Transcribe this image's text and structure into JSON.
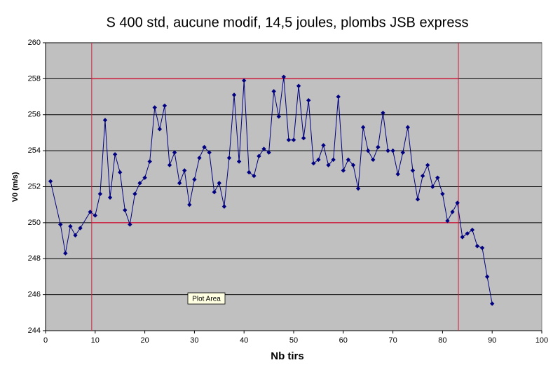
{
  "chart_data": {
    "type": "line",
    "title": "S 400 std, aucune modif,  14,5 joules,  plombs JSB express",
    "x_label": "Nb tirs",
    "y_label": "V0 (m/s)",
    "x": [
      1,
      3,
      4,
      5,
      6,
      7,
      9,
      10,
      11,
      12,
      13,
      14,
      15,
      16,
      17,
      18,
      19,
      20,
      21,
      22,
      23,
      24,
      25,
      26,
      27,
      28,
      29,
      30,
      31,
      32,
      33,
      34,
      35,
      36,
      37,
      38,
      39,
      40,
      41,
      42,
      43,
      44,
      45,
      46,
      47,
      48,
      49,
      50,
      51,
      52,
      53,
      54,
      55,
      56,
      57,
      58,
      59,
      60,
      61,
      62,
      63,
      64,
      65,
      66,
      67,
      68,
      69,
      70,
      71,
      72,
      73,
      74,
      75,
      76,
      77,
      78,
      79,
      80,
      81,
      82,
      83,
      84,
      85,
      86,
      87,
      88,
      89,
      90
    ],
    "values": [
      252.3,
      249.9,
      248.3,
      249.8,
      249.3,
      249.7,
      250.6,
      250.4,
      251.6,
      255.7,
      251.4,
      253.8,
      252.8,
      250.7,
      249.9,
      251.6,
      252.2,
      252.5,
      253.4,
      256.4,
      255.2,
      256.5,
      253.2,
      253.9,
      252.2,
      252.9,
      251.0,
      252.4,
      253.6,
      254.2,
      253.9,
      251.7,
      252.2,
      250.9,
      253.6,
      257.1,
      253.4,
      257.9,
      252.8,
      252.6,
      253.7,
      254.1,
      253.9,
      257.3,
      255.9,
      258.1,
      254.6,
      254.6,
      257.6,
      254.7,
      256.8,
      253.3,
      253.5,
      254.3,
      253.2,
      253.5,
      257.0,
      252.9,
      253.5,
      253.2,
      251.9,
      255.3,
      254.0,
      253.5,
      254.2,
      256.1,
      254.0,
      254.0,
      252.7,
      253.9,
      255.3,
      252.9,
      251.3,
      252.6,
      253.2,
      252.0,
      252.5,
      251.6,
      250.1,
      250.6,
      251.1,
      249.2,
      249.4,
      249.6,
      248.7,
      248.6,
      247.0,
      245.5
    ],
    "color": "#000080",
    "xlim": [
      0,
      100
    ],
    "xticks": [
      0,
      10,
      20,
      30,
      40,
      50,
      60,
      70,
      80,
      90,
      100
    ],
    "ylim": [
      244,
      260
    ],
    "yticks": [
      244,
      246,
      248,
      250,
      252,
      254,
      256,
      258,
      260
    ],
    "grid": true,
    "reference_lines": {
      "x": [
        9.3,
        83.2
      ],
      "y": [
        250,
        258
      ],
      "color": "#d02040"
    },
    "annotation": "Plot Area"
  }
}
